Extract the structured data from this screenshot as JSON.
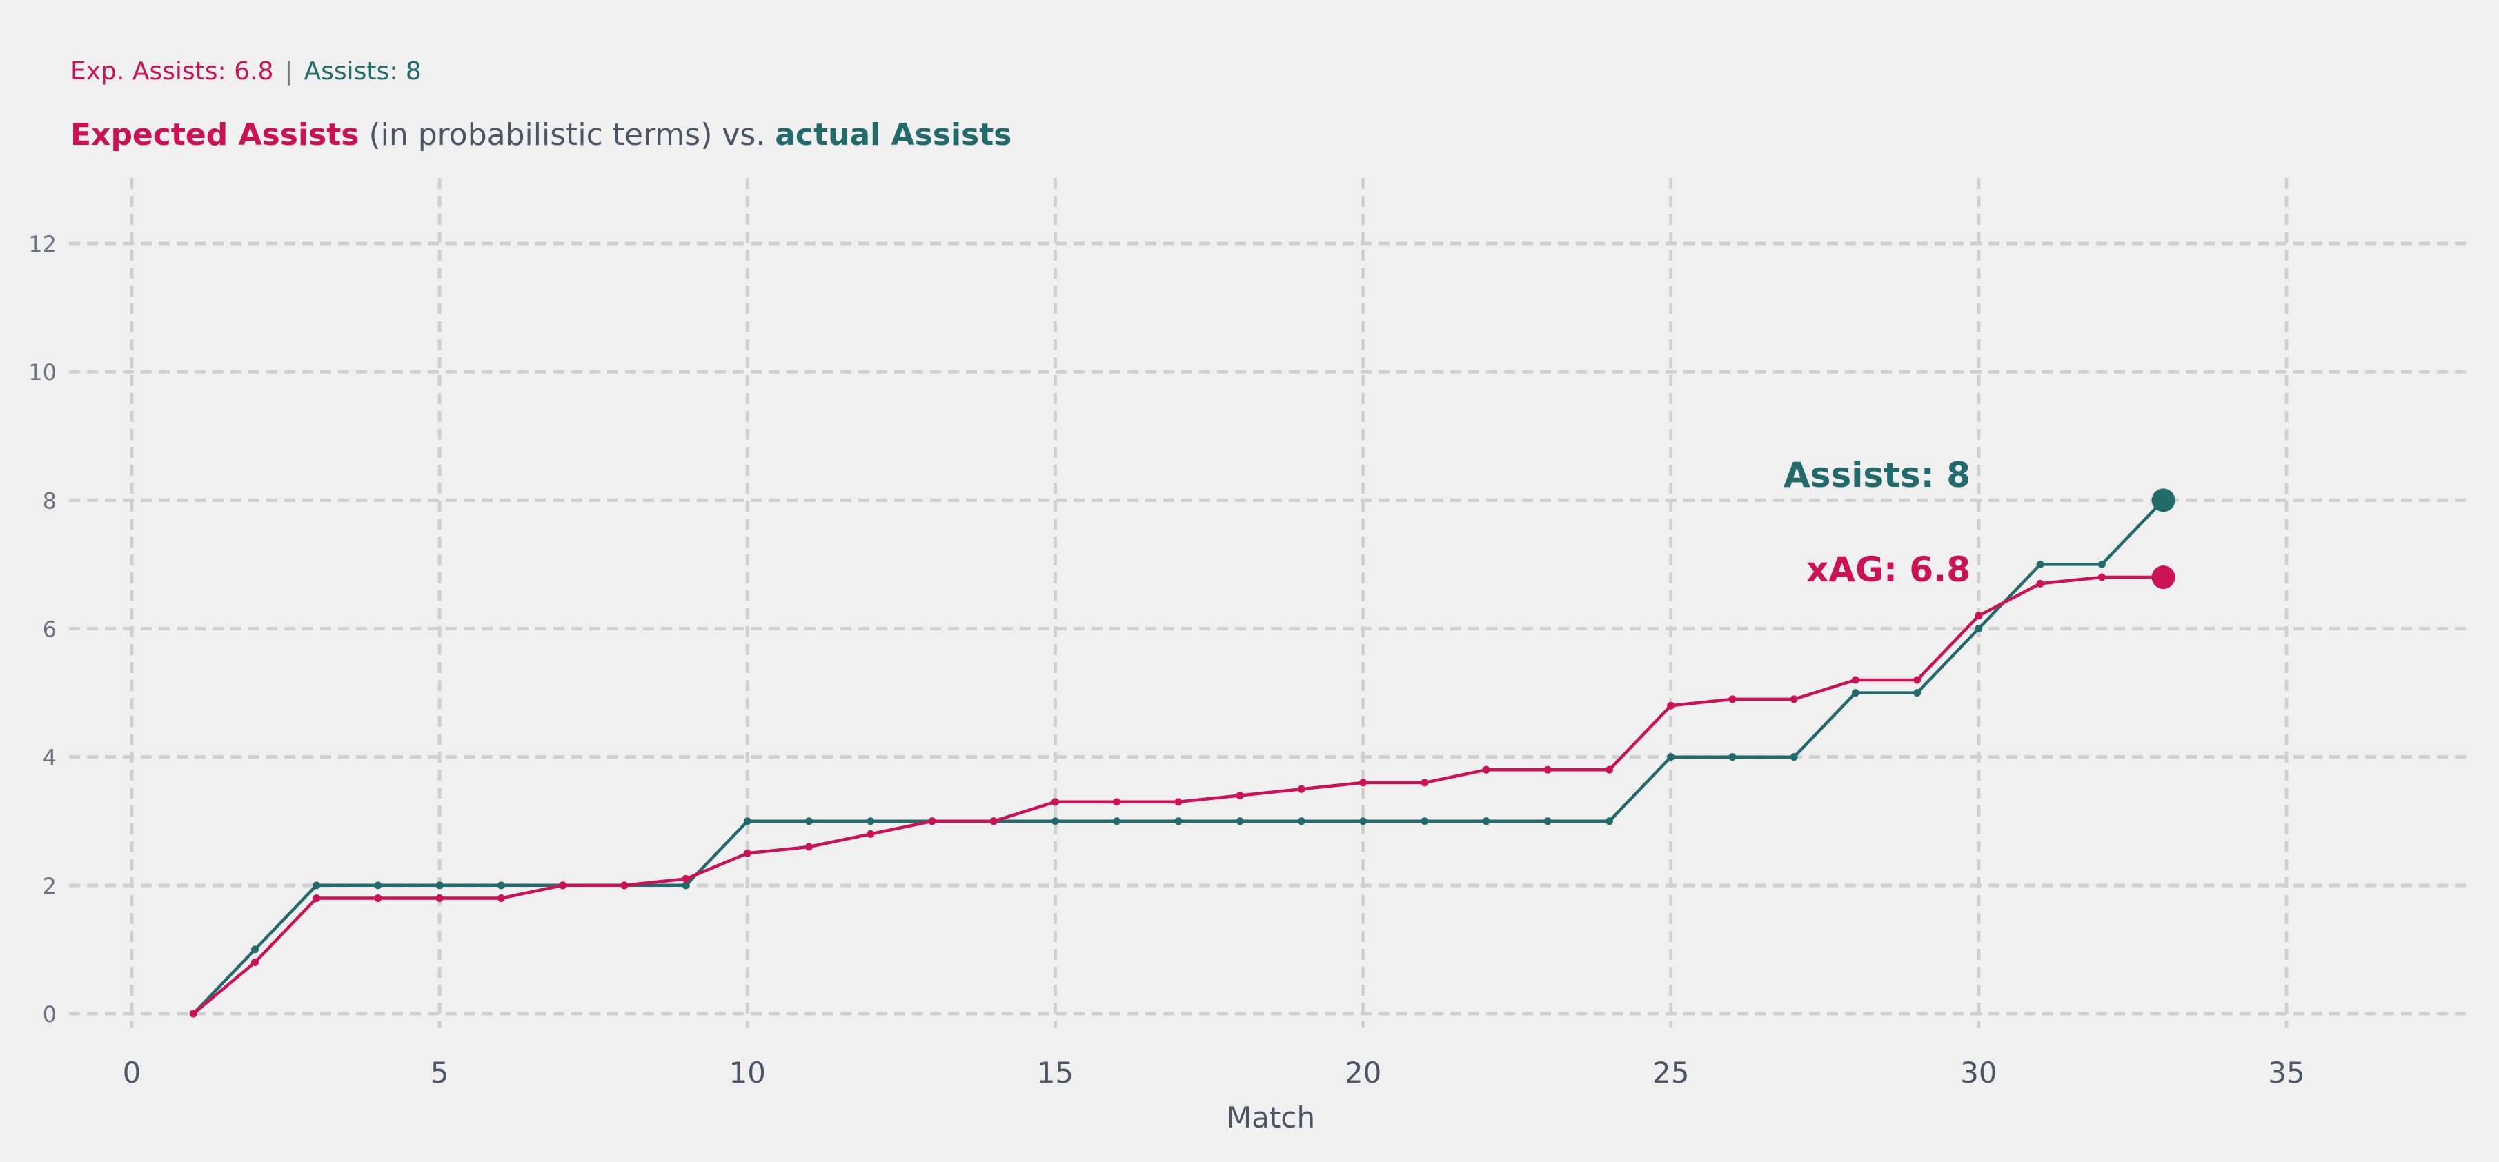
{
  "header": {
    "xa_summary": "Exp. Assists: 6.8",
    "separator": "|",
    "assists_summary": "Assists: 8",
    "title_xa": "Expected Assists",
    "title_middle": " (in probabilistic terms) vs. ",
    "title_assists": "actual Assists"
  },
  "colors": {
    "xa": "#cc1155",
    "assists": "#236b6b",
    "grid": "#d0d0d0",
    "tick_text": "#6b7280",
    "axis_text": "#4b5563"
  },
  "chart_data": {
    "type": "line",
    "xlabel": "Match",
    "ylabel": "",
    "xlim": [
      -1,
      38
    ],
    "ylim": [
      -0.4,
      13
    ],
    "xticks": [
      0,
      5,
      10,
      15,
      20,
      25,
      30,
      35
    ],
    "yticks": [
      0,
      2,
      4,
      6,
      8,
      10,
      12
    ],
    "grid": true,
    "x": [
      1,
      2,
      3,
      4,
      5,
      6,
      7,
      8,
      9,
      10,
      11,
      12,
      13,
      14,
      15,
      16,
      17,
      18,
      19,
      20,
      21,
      22,
      23,
      24,
      25,
      26,
      27,
      28,
      29,
      30,
      31,
      32,
      33
    ],
    "series": [
      {
        "key": "assists",
        "values": [
          0,
          1,
          2,
          2,
          2,
          2,
          2,
          2,
          2,
          3,
          3,
          3,
          3,
          3,
          3,
          3,
          3,
          3,
          3,
          3,
          3,
          3,
          3,
          3,
          4,
          4,
          4,
          5,
          5,
          6,
          7,
          7,
          8
        ],
        "end_label": "Assists: 8"
      },
      {
        "key": "xa",
        "values": [
          0,
          0.8,
          1.8,
          1.8,
          1.8,
          1.8,
          2.0,
          2.0,
          2.1,
          2.5,
          2.6,
          2.8,
          3.0,
          3.0,
          3.3,
          3.3,
          3.3,
          3.4,
          3.5,
          3.6,
          3.6,
          3.8,
          3.8,
          3.8,
          4.8,
          4.9,
          4.9,
          5.2,
          5.2,
          6.2,
          6.7,
          6.8,
          6.8
        ],
        "end_label": "xAG: 6.8"
      }
    ]
  }
}
